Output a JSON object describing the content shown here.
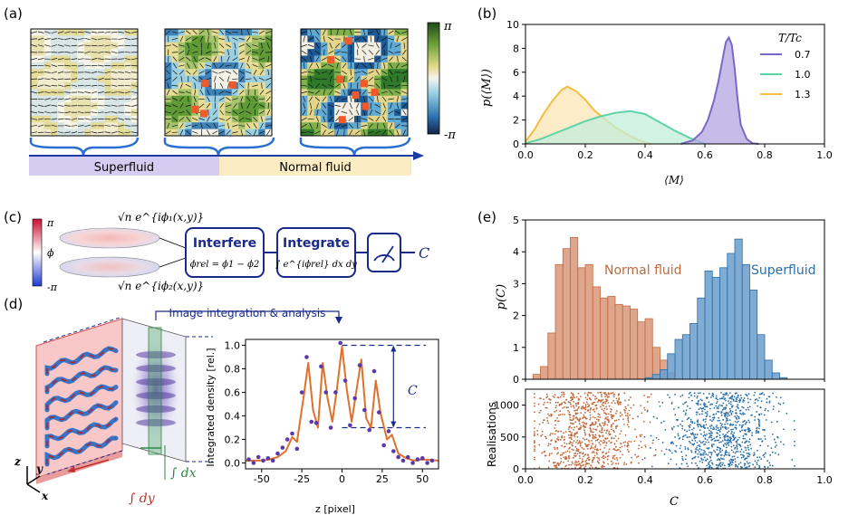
{
  "labels": {
    "a": "(a)",
    "b": "(b)",
    "c": "(c)",
    "d": "(d)",
    "e": "(e)"
  },
  "panel_a": {
    "colorbar_top": "π",
    "colorbar_bottom": "-π",
    "phase_superfluid": "Superfluid",
    "phase_normal": "Normal fluid",
    "colors": {
      "superfluid_bar": "#d4cdf1",
      "normal_bar": "#fbecc4",
      "arrow": "#1b3aa6"
    }
  },
  "panel_c": {
    "colorbar_top": "π",
    "colorbar_mid": "ϕ",
    "colorbar_bottom": "-π",
    "psi1": "√n e^{iϕ₁(x,y)}",
    "psi2": "√n e^{iϕ₂(x,y)}",
    "box_interfere": "Interfere",
    "eq_interfere": "ϕrel = ϕ1 − ϕ2",
    "box_integrate": "Integrate",
    "eq_integrate": "∫ e^{iϕrel} dx dy",
    "output": "C",
    "box_color": "#1a2a8a"
  },
  "panel_d": {
    "title": "Image integration & analysis",
    "int_dy": "∫ dy",
    "int_dx": "∫ dx",
    "axis_z": "z",
    "axis_y": "y",
    "axis_x": "x",
    "c_marker": "C"
  },
  "chart_data": [
    {
      "id": "b",
      "type": "area",
      "title": "",
      "xlabel": "⟨M⟩",
      "ylabel": "p(⟨M⟩)",
      "xlim": [
        0,
        1
      ],
      "ylim": [
        0,
        10
      ],
      "xticks": [
        "0.0",
        "0.2",
        "0.4",
        "0.6",
        "0.8",
        "1.0"
      ],
      "yticks": [
        "0",
        "2",
        "4",
        "6",
        "8",
        "10"
      ],
      "legend_title": "T/Tc",
      "legend_position": "top-right",
      "series": [
        {
          "name": "0.7",
          "color": "#7b68c4",
          "fill": "#b3a6e3",
          "x": [
            0.52,
            0.56,
            0.59,
            0.61,
            0.63,
            0.645,
            0.66,
            0.67,
            0.68,
            0.69,
            0.7,
            0.71,
            0.72,
            0.74,
            0.76,
            0.78
          ],
          "y": [
            0,
            0.3,
            1.0,
            2.0,
            3.6,
            5.2,
            7.2,
            8.5,
            8.9,
            8.3,
            6.2,
            3.6,
            1.6,
            0.4,
            0.05,
            0
          ]
        },
        {
          "name": "1.0",
          "color": "#5fd3a6",
          "fill": "#c3eedb",
          "x": [
            0.0,
            0.05,
            0.1,
            0.15,
            0.2,
            0.25,
            0.3,
            0.35,
            0.4,
            0.45,
            0.5,
            0.55,
            0.6
          ],
          "y": [
            0.05,
            0.4,
            0.9,
            1.4,
            1.9,
            2.3,
            2.6,
            2.75,
            2.5,
            1.8,
            1.1,
            0.5,
            0.0
          ]
        },
        {
          "name": "1.3",
          "color": "#f2be3c",
          "fill": "#fbe6b6",
          "x": [
            0.0,
            0.03,
            0.06,
            0.09,
            0.12,
            0.14,
            0.17,
            0.2,
            0.23,
            0.26,
            0.3,
            0.34,
            0.38,
            0.42
          ],
          "y": [
            0.2,
            1.2,
            2.5,
            3.6,
            4.5,
            4.8,
            4.4,
            3.7,
            2.8,
            2.2,
            1.4,
            0.8,
            0.3,
            0
          ]
        }
      ]
    },
    {
      "id": "d",
      "type": "line",
      "title": "",
      "xlabel": "z [pixel]",
      "ylabel": "Integrated density [rel.]",
      "xlim": [
        -60,
        60
      ],
      "ylim": [
        -0.05,
        1.05
      ],
      "xticks": [
        "-50",
        "-25",
        "0",
        "25",
        "50"
      ],
      "yticks": [
        "0.0",
        "0.2",
        "0.4",
        "0.6",
        "0.8",
        "1.0"
      ],
      "fit_color": "#e0702a",
      "points_color": "#5a3aa8",
      "reference_lines": [
        1.0,
        0.3
      ],
      "annotation": "C",
      "fit": {
        "x": [
          -60,
          -50,
          -45,
          -40,
          -35,
          -31,
          -28,
          -24,
          -21,
          -18,
          -15,
          -12,
          -9,
          -6,
          -3,
          0,
          3,
          6,
          9,
          12,
          15,
          18,
          21,
          24,
          28,
          31,
          35,
          40,
          45,
          50,
          60
        ],
        "y": [
          0.02,
          0.02,
          0.03,
          0.05,
          0.1,
          0.22,
          0.18,
          0.55,
          0.85,
          0.45,
          0.3,
          0.85,
          0.55,
          0.35,
          0.65,
          0.99,
          0.62,
          0.35,
          0.62,
          0.88,
          0.38,
          0.3,
          0.7,
          0.42,
          0.2,
          0.24,
          0.08,
          0.04,
          0.02,
          0.03,
          0.02
        ]
      },
      "points": {
        "x": [
          -58,
          -55,
          -52,
          -49,
          -46,
          -43,
          -40,
          -37,
          -34,
          -31,
          -28,
          -25,
          -22,
          -19,
          -16,
          -13,
          -10,
          -7,
          -4,
          -1,
          2,
          5,
          8,
          11,
          14,
          17,
          20,
          23,
          26,
          29,
          32,
          35,
          38,
          41,
          44,
          47,
          50,
          53,
          56
        ],
        "y": [
          0.03,
          0.0,
          0.05,
          0.02,
          0.04,
          0.02,
          0.08,
          0.13,
          0.2,
          0.25,
          0.12,
          0.6,
          0.9,
          0.35,
          0.34,
          0.82,
          0.6,
          0.3,
          0.6,
          1.02,
          0.7,
          0.32,
          0.55,
          0.83,
          0.45,
          0.28,
          0.78,
          0.43,
          0.15,
          0.27,
          0.1,
          0.05,
          0.02,
          0.05,
          0.0,
          0.03,
          0.04,
          0.0,
          0.02
        ]
      }
    },
    {
      "id": "e-top",
      "type": "bar",
      "title": "",
      "xlabel": "",
      "ylabel": "p(C)",
      "xlim": [
        0,
        1
      ],
      "ylim": [
        0,
        5
      ],
      "yticks": [
        "0",
        "1",
        "2",
        "3",
        "4",
        "5"
      ],
      "bin_width": 0.025,
      "series": [
        {
          "name": "Normal fluid",
          "color": "#c0693c",
          "fill": "#d9977a",
          "bins": [
            0.025,
            0.05,
            0.075,
            0.1,
            0.125,
            0.15,
            0.175,
            0.2,
            0.225,
            0.25,
            0.275,
            0.3,
            0.325,
            0.35,
            0.375,
            0.4,
            0.425,
            0.45,
            0.475
          ],
          "values": [
            0.15,
            0.4,
            1.45,
            3.6,
            4.1,
            4.45,
            3.5,
            3.6,
            2.9,
            2.55,
            2.6,
            2.35,
            2.3,
            2.2,
            1.8,
            1.9,
            1.0,
            0.6,
            0.2
          ]
        },
        {
          "name": "Superfluid",
          "color": "#2a6fa8",
          "fill": "#6a9ecb",
          "bins": [
            0.4,
            0.425,
            0.45,
            0.475,
            0.5,
            0.525,
            0.55,
            0.575,
            0.6,
            0.625,
            0.65,
            0.675,
            0.7,
            0.725,
            0.75,
            0.775,
            0.8,
            0.825,
            0.85
          ],
          "values": [
            0.05,
            0.15,
            0.3,
            0.8,
            1.25,
            1.4,
            1.75,
            2.55,
            3.4,
            3.2,
            3.5,
            3.95,
            4.4,
            3.6,
            2.8,
            1.4,
            0.6,
            0.2,
            0.05
          ]
        }
      ]
    },
    {
      "id": "e-bottom",
      "type": "scatter",
      "title": "",
      "xlabel": "C",
      "ylabel": "Realisations",
      "xlim": [
        0,
        1
      ],
      "ylim": [
        0,
        1250
      ],
      "xticks": [
        "0.0",
        "0.2",
        "0.4",
        "0.6",
        "0.8",
        "1.0"
      ],
      "yticks": [
        "0",
        "500",
        "1000"
      ],
      "series": [
        {
          "name": "Normal fluid",
          "color": "#c0693c",
          "center": 0.21,
          "spread": 0.09,
          "count": 900
        },
        {
          "name": "Superfluid",
          "color": "#2a6fa8",
          "center": 0.66,
          "spread": 0.09,
          "count": 900
        }
      ]
    }
  ]
}
